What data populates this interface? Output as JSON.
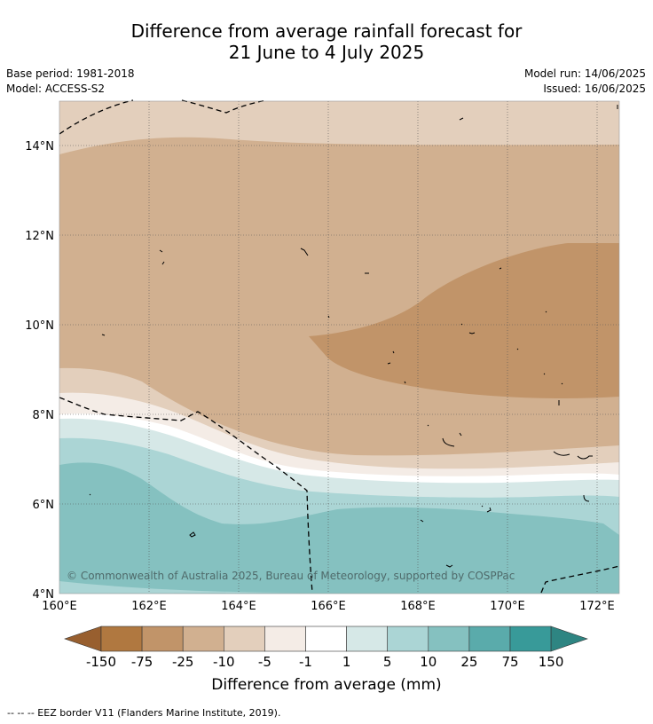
{
  "title_line1": "Difference from average rainfall forecast for",
  "title_line2": "21 June to 4 July 2025",
  "meta": {
    "base_period": "Base period: 1981-2018",
    "model": "Model: ACCESS-S2",
    "model_run": "Model run: 14/06/2025",
    "issued": "Issued: 16/06/2025"
  },
  "map": {
    "lon_labels": [
      "160°E",
      "162°E",
      "164°E",
      "166°E",
      "168°E",
      "170°E",
      "172°E"
    ],
    "lat_labels": [
      "14°N",
      "12°N",
      "10°N",
      "8°N",
      "6°N",
      "4°N"
    ],
    "copyright": "© Commonwealth of Australia 2025, Bureau of Meteorology, supported by COSPPac"
  },
  "colorbar": {
    "title": "Difference from average (mm)",
    "tick_labels": [
      "-150",
      "-75",
      "-25",
      "-10",
      "-5",
      "-1",
      "1",
      "5",
      "10",
      "25",
      "75",
      "150"
    ],
    "colors": [
      "#985f2f",
      "#b07840",
      "#c19469",
      "#d1b090",
      "#e3cfbc",
      "#f4ece6",
      "#ffffff",
      "#d6e8e7",
      "#abd5d5",
      "#85c1c0",
      "#5aabab",
      "#389a99",
      "#2e8582"
    ]
  },
  "footer": "--  --  -- EEZ border V11 (Flanders Marine Institute, 2019)."
}
